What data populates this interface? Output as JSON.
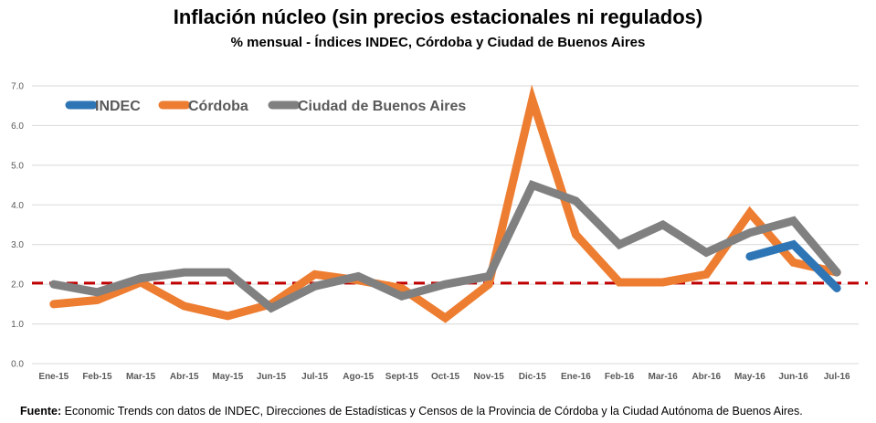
{
  "chart_data": {
    "type": "line",
    "title": "Inflación núcleo (sin precios estacionales ni regulados)",
    "subtitle": "% mensual - Índices INDEC, Córdoba y Ciudad de Buenos Aires",
    "xlabel": "",
    "ylabel": "",
    "ylim": [
      0,
      7
    ],
    "yticks": [
      "0.0",
      "1.0",
      "2.0",
      "3.0",
      "4.0",
      "5.0",
      "6.0",
      "7.0"
    ],
    "grid": true,
    "legend_position": "top-left",
    "categories": [
      "Ene-15",
      "Feb-15",
      "Mar-15",
      "Abr-15",
      "May-15",
      "Jun-15",
      "Jul-15",
      "Ago-15",
      "Sept-15",
      "Oct-15",
      "Nov-15",
      "Dic-15",
      "Ene-16",
      "Feb-16",
      "Mar-16",
      "Abr-16",
      "May-16",
      "Jun-16",
      "Jul-16"
    ],
    "series": [
      {
        "name": "INDEC",
        "color": "#2E75B6",
        "values": [
          null,
          null,
          null,
          null,
          null,
          null,
          null,
          null,
          null,
          null,
          null,
          null,
          null,
          null,
          null,
          null,
          2.7,
          3.0,
          1.9
        ]
      },
      {
        "name": "Córdoba",
        "color": "#ED7D31",
        "values": [
          1.5,
          1.6,
          2.05,
          1.45,
          1.2,
          1.5,
          2.25,
          2.1,
          1.9,
          1.15,
          2.0,
          6.65,
          3.25,
          2.05,
          2.05,
          2.25,
          3.8,
          2.55,
          2.3
        ]
      },
      {
        "name": "Ciudad de Buenos Aires",
        "color": "#808080",
        "values": [
          2.0,
          1.8,
          2.15,
          2.3,
          2.3,
          1.4,
          1.95,
          2.2,
          1.7,
          2.0,
          2.2,
          4.5,
          4.1,
          3.0,
          3.5,
          2.8,
          3.3,
          3.6,
          2.3
        ]
      }
    ],
    "reference_line": {
      "value": 2.03,
      "color": "#C00000",
      "style": "dashed"
    }
  },
  "source": {
    "label": "Fuente:",
    "text": " Economic Trends con datos de INDEC, Direcciones de Estadísticas y Censos de la Provincia de Córdoba y la Ciudad Autónoma de Buenos Aires."
  }
}
